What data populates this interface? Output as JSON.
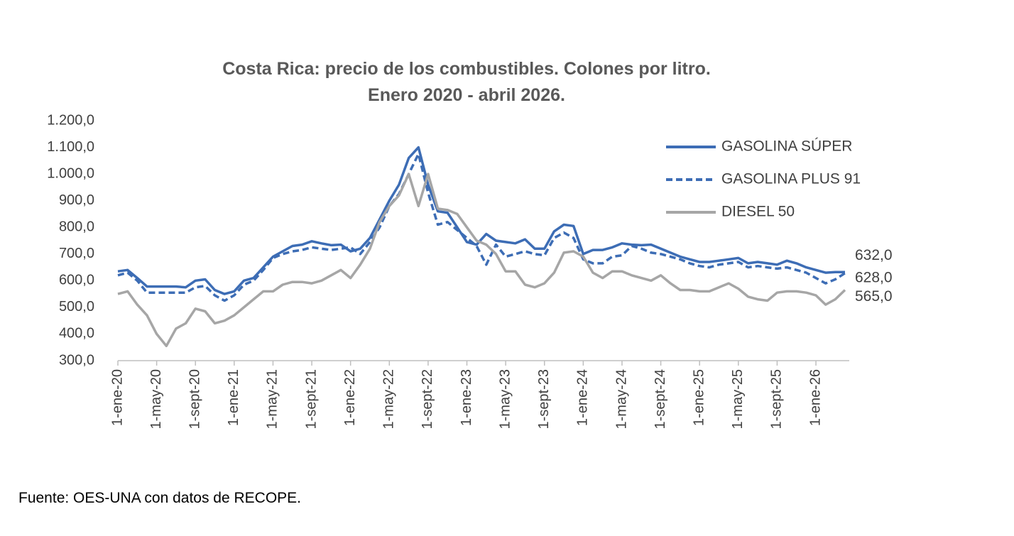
{
  "chart_data": {
    "type": "line",
    "title": "Costa Rica: precio de los combustibles. Colones por litro.",
    "subtitle": "Enero 2020 - abril 2026.",
    "source": "Fuente: OES-UNA con datos de RECOPE.",
    "categories": [
      "1-ene-20",
      null,
      null,
      null,
      "1-may-20",
      null,
      null,
      null,
      "1-sept-20",
      null,
      null,
      null,
      "1-ene-21",
      null,
      null,
      null,
      "1-may-21",
      null,
      null,
      null,
      "1-sept-21",
      null,
      null,
      null,
      "1-ene-22",
      null,
      null,
      null,
      "1-may-22",
      null,
      null,
      null,
      "1-sept-22",
      null,
      null,
      null,
      "1-ene-23",
      null,
      null,
      null,
      "1-may-23",
      null,
      null,
      null,
      "1-sept-23",
      null,
      null,
      null,
      "1-ene-24",
      null,
      null,
      null,
      "1-may-24",
      null,
      null,
      null,
      "1-sept-24",
      null,
      null,
      null,
      "1-ene-25",
      null,
      null,
      null,
      "1-may-25",
      null,
      null,
      null,
      "1-sept-25",
      null,
      null,
      null,
      "1-ene-26",
      null,
      null,
      null
    ],
    "ylim": [
      300,
      1200
    ],
    "yticks": [
      {
        "value": 300,
        "label": "300,0"
      },
      {
        "value": 400,
        "label": "400,0"
      },
      {
        "value": 500,
        "label": "500,0"
      },
      {
        "value": 600,
        "label": "600,0"
      },
      {
        "value": 700,
        "label": "700,0"
      },
      {
        "value": 800,
        "label": "800,0"
      },
      {
        "value": 900,
        "label": "900,0"
      },
      {
        "value": 1000,
        "label": "1.000,0"
      },
      {
        "value": 1100,
        "label": "1.100,0"
      },
      {
        "value": 1200,
        "label": "1.200,0"
      }
    ],
    "grid": false,
    "legend": "top-right",
    "series": [
      {
        "name": "GASOLINA SÚPER",
        "color": "#3d6db5",
        "style": "solid",
        "values": [
          635,
          640,
          610,
          578,
          578,
          578,
          578,
          575,
          600,
          605,
          565,
          550,
          560,
          600,
          610,
          650,
          690,
          710,
          730,
          735,
          748,
          740,
          733,
          735,
          710,
          720,
          760,
          830,
          900,
          960,
          1060,
          1100,
          960,
          860,
          855,
          800,
          745,
          735,
          775,
          750,
          745,
          740,
          755,
          720,
          720,
          785,
          810,
          805,
          700,
          715,
          715,
          725,
          740,
          735,
          733,
          735,
          720,
          705,
          690,
          680,
          670,
          670,
          675,
          680,
          685,
          665,
          670,
          665,
          660,
          675,
          665,
          650,
          640,
          630,
          632,
          632
        ],
        "value_labels": [
          null,
          null,
          null,
          null,
          null,
          null,
          null,
          null,
          null,
          null,
          null,
          null,
          null,
          null,
          null,
          null,
          null,
          null,
          null,
          null,
          null,
          null,
          null,
          null,
          null,
          null,
          null,
          null,
          null,
          null,
          null,
          null,
          null,
          null,
          null,
          null,
          null,
          null,
          null,
          null,
          null,
          null,
          null,
          null,
          null,
          null,
          null,
          null,
          null,
          null,
          null,
          null,
          null,
          null,
          null,
          null,
          null,
          null,
          null,
          null,
          null,
          null,
          null,
          null,
          null,
          null,
          null,
          null,
          null,
          null,
          null,
          null,
          null,
          null,
          null,
          "632,0"
        ]
      },
      {
        "name": "GASOLINA PLUS 91",
        "color": "#3d6db5",
        "style": "dashed",
        "values": [
          620,
          630,
          600,
          555,
          555,
          555,
          555,
          555,
          575,
          580,
          545,
          525,
          545,
          585,
          600,
          640,
          685,
          700,
          710,
          715,
          725,
          720,
          715,
          720,
          725,
          700,
          745,
          800,
          880,
          925,
          1000,
          1075,
          930,
          810,
          820,
          790,
          760,
          730,
          660,
          735,
          690,
          700,
          710,
          700,
          695,
          760,
          780,
          760,
          680,
          665,
          665,
          690,
          695,
          730,
          720,
          705,
          700,
          690,
          680,
          665,
          655,
          650,
          660,
          665,
          670,
          650,
          655,
          650,
          645,
          650,
          640,
          630,
          610,
          590,
          605,
          628
        ],
        "value_labels": [
          null,
          null,
          null,
          null,
          null,
          null,
          null,
          null,
          null,
          null,
          null,
          null,
          null,
          null,
          null,
          null,
          null,
          null,
          null,
          null,
          null,
          null,
          null,
          null,
          null,
          null,
          null,
          null,
          null,
          null,
          null,
          null,
          null,
          null,
          null,
          null,
          null,
          null,
          null,
          null,
          null,
          null,
          null,
          null,
          null,
          null,
          null,
          null,
          null,
          null,
          null,
          null,
          null,
          null,
          null,
          null,
          null,
          null,
          null,
          null,
          null,
          null,
          null,
          null,
          null,
          null,
          null,
          null,
          null,
          null,
          null,
          null,
          null,
          null,
          null,
          "628,0"
        ]
      },
      {
        "name": "DIESEL 50",
        "color": "#a6a6a6",
        "style": "solid",
        "values": [
          550,
          560,
          510,
          470,
          400,
          355,
          420,
          440,
          495,
          485,
          440,
          450,
          470,
          500,
          530,
          560,
          560,
          585,
          595,
          595,
          590,
          600,
          620,
          640,
          610,
          660,
          720,
          820,
          880,
          920,
          1000,
          880,
          1000,
          870,
          865,
          850,
          800,
          750,
          735,
          700,
          635,
          635,
          585,
          575,
          590,
          630,
          705,
          710,
          690,
          630,
          610,
          635,
          635,
          620,
          610,
          600,
          620,
          590,
          565,
          565,
          560,
          560,
          575,
          590,
          570,
          540,
          530,
          525,
          555,
          560,
          560,
          555,
          545,
          510,
          530,
          565
        ],
        "value_labels": [
          null,
          null,
          null,
          null,
          null,
          null,
          null,
          null,
          null,
          null,
          null,
          null,
          null,
          null,
          null,
          null,
          null,
          null,
          null,
          null,
          null,
          null,
          null,
          null,
          null,
          null,
          null,
          null,
          null,
          null,
          null,
          null,
          null,
          null,
          null,
          null,
          null,
          null,
          null,
          null,
          null,
          null,
          null,
          null,
          null,
          null,
          null,
          null,
          null,
          null,
          null,
          null,
          null,
          null,
          null,
          null,
          null,
          null,
          null,
          null,
          null,
          null,
          null,
          null,
          null,
          null,
          null,
          null,
          null,
          null,
          null,
          null,
          null,
          null,
          null,
          "565,0"
        ]
      }
    ]
  }
}
